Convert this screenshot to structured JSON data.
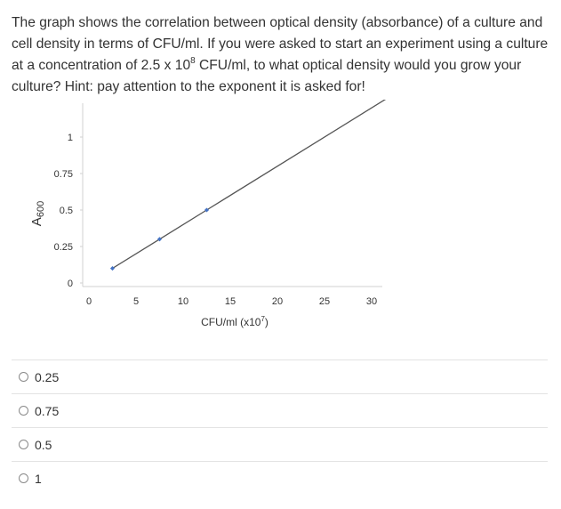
{
  "question": {
    "part1": "The graph shows the correlation between optical density (absorbance) of a culture and cell density in terms of CFU/ml.  If you were asked to start an experiment using a culture at a concentration of 2.5 x 10",
    "exp": "8",
    "part2": " CFU/ml, to what optical density would you grow your culture? Hint: pay attention to the exponent it is asked for!"
  },
  "chart_data": {
    "type": "line",
    "title": "",
    "ylabel_base": "A",
    "ylabel_sub": "600",
    "xlabel_base": "CFU/ml (x10",
    "xlabel_exp": "7",
    "xlabel_end": ")",
    "xlim": [
      0,
      30
    ],
    "ylim": [
      0,
      1
    ],
    "xticks": [
      0,
      5,
      10,
      15,
      20,
      25,
      30
    ],
    "xtick_labels": [
      "0",
      "5",
      "10",
      "15",
      "20",
      "25",
      "30"
    ],
    "yticks": [
      0,
      0.25,
      0.5,
      0.75,
      1
    ],
    "ytick_labels": [
      "0",
      "0.25",
      "0.5",
      "0.75",
      "1"
    ],
    "grid": false,
    "series": [
      {
        "x": [
          2.5,
          7.5,
          12.5,
          32.5
        ],
        "y": [
          0.1,
          0.3,
          0.5,
          1.3
        ],
        "color": "#4472c4",
        "line_color": "#555555"
      }
    ]
  },
  "options": [
    {
      "label": "0.25"
    },
    {
      "label": "0.75"
    },
    {
      "label": "0.5"
    },
    {
      "label": "1"
    }
  ]
}
